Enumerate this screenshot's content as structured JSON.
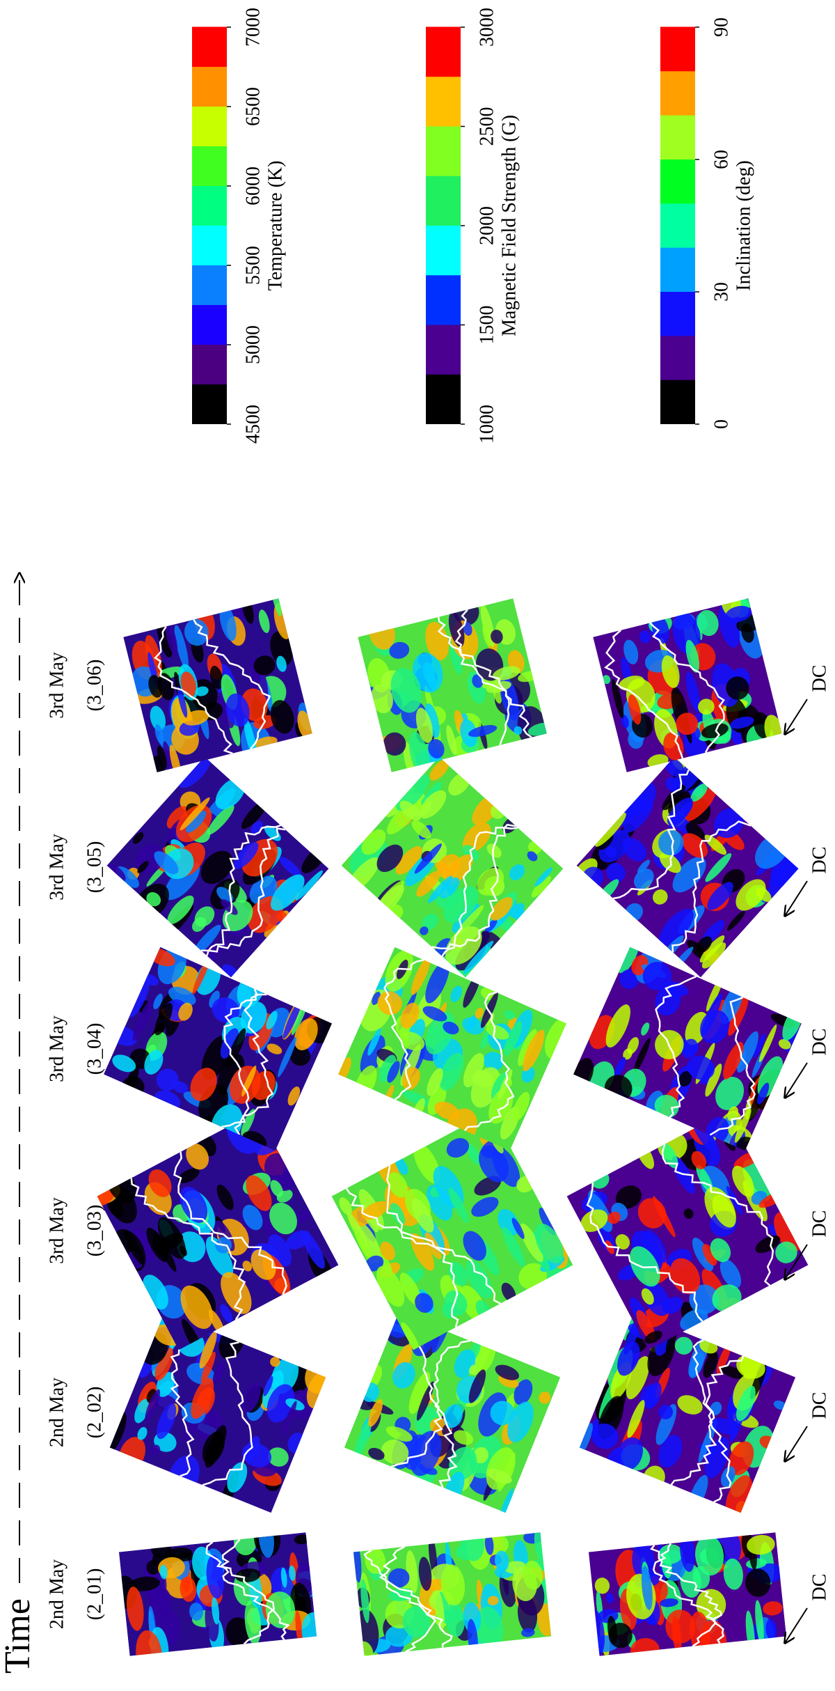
{
  "time_label": "Time",
  "columns": [
    {
      "date": "2nd May",
      "id": "(2_01)",
      "dc": "DC"
    },
    {
      "date": "2nd May",
      "id": "(2_02)",
      "dc": "DC"
    },
    {
      "date": "3rd May",
      "id": "(3_03)",
      "dc": "DC"
    },
    {
      "date": "3rd May",
      "id": "(3_04)",
      "dc": "DC"
    },
    {
      "date": "3rd May",
      "id": "(3_05)",
      "dc": "DC"
    },
    {
      "date": "3rd May",
      "id": "(3_06)",
      "dc": "DC"
    }
  ],
  "colorbars": [
    {
      "title": "Temperature (K)",
      "lim": [
        4500,
        7000
      ],
      "ticks": [
        4500,
        5000,
        5500,
        6000,
        6500,
        7000
      ],
      "colors": [
        "#000000",
        "#4b0082",
        "#1a00ff",
        "#0a80ff",
        "#00ffff",
        "#00ff80",
        "#40ff20",
        "#c8ff00",
        "#ff9000",
        "#ff0000"
      ]
    },
    {
      "title": "Magnetic Field Strength (G)",
      "lim": [
        1000,
        3000
      ],
      "ticks": [
        1000,
        1500,
        2000,
        2500,
        3000
      ],
      "colors": [
        "#000000",
        "#4b0090",
        "#0030ff",
        "#00ffff",
        "#20f060",
        "#80ff20",
        "#ffc000",
        "#ff0000"
      ]
    },
    {
      "title": "Inclination (deg)",
      "lim": [
        0,
        90
      ],
      "ticks": [
        0,
        30,
        60,
        90
      ],
      "colors": [
        "#000000",
        "#4b0090",
        "#1010ff",
        "#00a0ff",
        "#00ffa0",
        "#00ff20",
        "#a0ff20",
        "#ffa000",
        "#ff0000"
      ]
    }
  ]
}
